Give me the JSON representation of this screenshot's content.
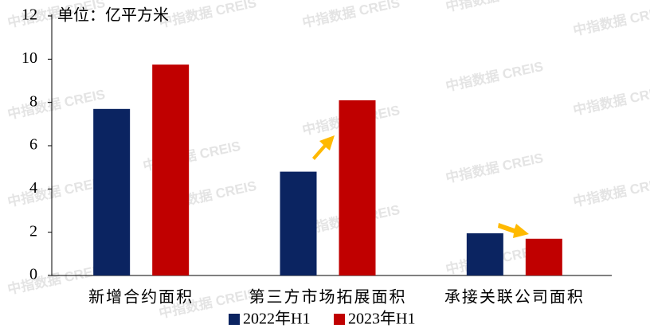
{
  "chart_data": {
    "type": "bar",
    "annotation": "单位：亿平方米",
    "watermark": "中指数据 CREIS",
    "categories": [
      "新增合约面积",
      "第三方市场拓展面积",
      "承接关联公司面积"
    ],
    "series": [
      {
        "name": "2022年H1",
        "color": "#0b2461",
        "values": [
          7.7,
          4.8,
          1.95
        ]
      },
      {
        "name": "2023年H1",
        "color": "#c00000",
        "values": [
          9.75,
          8.1,
          1.7
        ]
      }
    ],
    "ylim": [
      0,
      12
    ],
    "yticks": [
      0,
      2,
      4,
      6,
      8,
      10,
      12
    ],
    "grid": false
  }
}
